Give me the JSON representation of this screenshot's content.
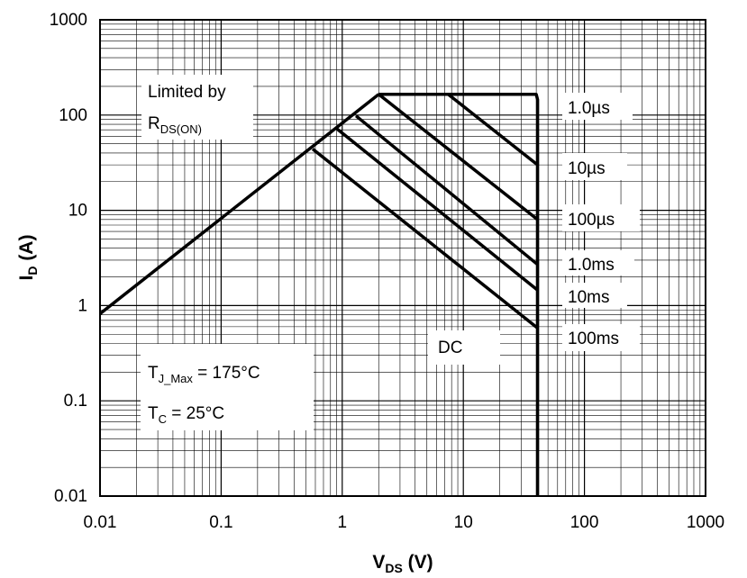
{
  "chart_data": {
    "type": "line",
    "title": "",
    "xlabel": {
      "main": "V",
      "sub": "DS",
      "unit": " (V)"
    },
    "ylabel": {
      "main": "I",
      "sub": "D",
      "unit": " (A)"
    },
    "xscale": "log",
    "yscale": "log",
    "xlim": [
      0.01,
      1000
    ],
    "ylim": [
      0.01,
      1000
    ],
    "grid": true,
    "x_ticks": [
      "0.01",
      "0.1",
      "1",
      "10",
      "100",
      "1000"
    ],
    "y_ticks": [
      "0.01",
      "0.1",
      "1",
      "10",
      "100",
      "1000"
    ],
    "x_tick_values": [
      0.01,
      0.1,
      1,
      10,
      100,
      1000
    ],
    "y_tick_values": [
      0.01,
      0.1,
      1,
      10,
      100,
      1000
    ],
    "series": [
      {
        "name": "Limited by R_DS(ON)",
        "x": [
          0.01,
          2.0
        ],
        "y": [
          0.82,
          165
        ]
      },
      {
        "name": "",
        "x": [
          2.0,
          40,
          41,
          41
        ],
        "y": [
          165,
          165,
          145,
          0.01
        ]
      },
      {
        "name": "1.0µs",
        "x": [
          7.5,
          41
        ],
        "y": [
          165,
          30
        ]
      },
      {
        "name": "10µs",
        "x": [
          2.0,
          41
        ],
        "y": [
          165,
          8
        ]
      },
      {
        "name": "100µs",
        "x": [
          1.3,
          41
        ],
        "y": [
          98,
          2.7
        ]
      },
      {
        "name": "1.0ms",
        "x": [
          0.9,
          41
        ],
        "y": [
          72,
          1.45
        ]
      },
      {
        "name": "10ms",
        "x": [
          0.57,
          41
        ],
        "y": [
          44,
          0.58
        ]
      }
    ],
    "annotations": {
      "limited": {
        "line1": "Limited by",
        "line2_main": "R",
        "line2_sub": "DS(ON)"
      },
      "curve_labels": [
        "1.0µs",
        "10µs",
        "100µs",
        "1.0ms",
        "10ms",
        "100ms",
        "DC"
      ],
      "tj": {
        "main": "T",
        "sub": "J_Max",
        "rest": " = 175°C"
      },
      "tc": {
        "main": "T",
        "sub": "C",
        "rest": " = 25°C"
      }
    },
    "colors": {
      "line": "#000000",
      "grid": "#000000",
      "background": "#ffffff"
    }
  }
}
